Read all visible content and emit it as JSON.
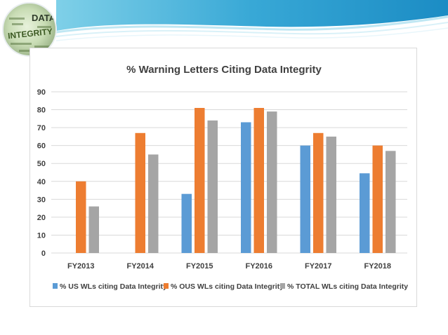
{
  "logo": {
    "word_top": "DATA",
    "word_bottom": "INTEGRITY"
  },
  "colors": {
    "us": "#5B9BD5",
    "ous": "#ED7D31",
    "total": "#A5A5A5",
    "grid": "#d9d9d9",
    "text": "#404040"
  },
  "chart_data": {
    "type": "bar",
    "title": "% Warning Letters Citing Data Integrity",
    "xlabel": "",
    "ylabel": "",
    "categories": [
      "FY2013",
      "FY2014",
      "FY2015",
      "FY2016",
      "FY2017",
      "FY2018"
    ],
    "ylim": [
      0,
      90
    ],
    "yticks": [
      0,
      10,
      20,
      30,
      40,
      50,
      60,
      70,
      80,
      90
    ],
    "grid": true,
    "legend_position": "bottom",
    "series": [
      {
        "name": "% US WLs citing Data Integrity",
        "color": "#5B9BD5",
        "values": [
          0,
          0,
          33,
          73,
          60,
          44.5
        ]
      },
      {
        "name": "% OUS WLs citing Data Integrity",
        "color": "#ED7D31",
        "values": [
          40,
          67,
          81,
          81,
          67,
          60
        ]
      },
      {
        "name": "% TOTAL WLs citing Data Integrity",
        "color": "#A5A5A5",
        "values": [
          26,
          55,
          74,
          79,
          65,
          57
        ]
      }
    ]
  }
}
